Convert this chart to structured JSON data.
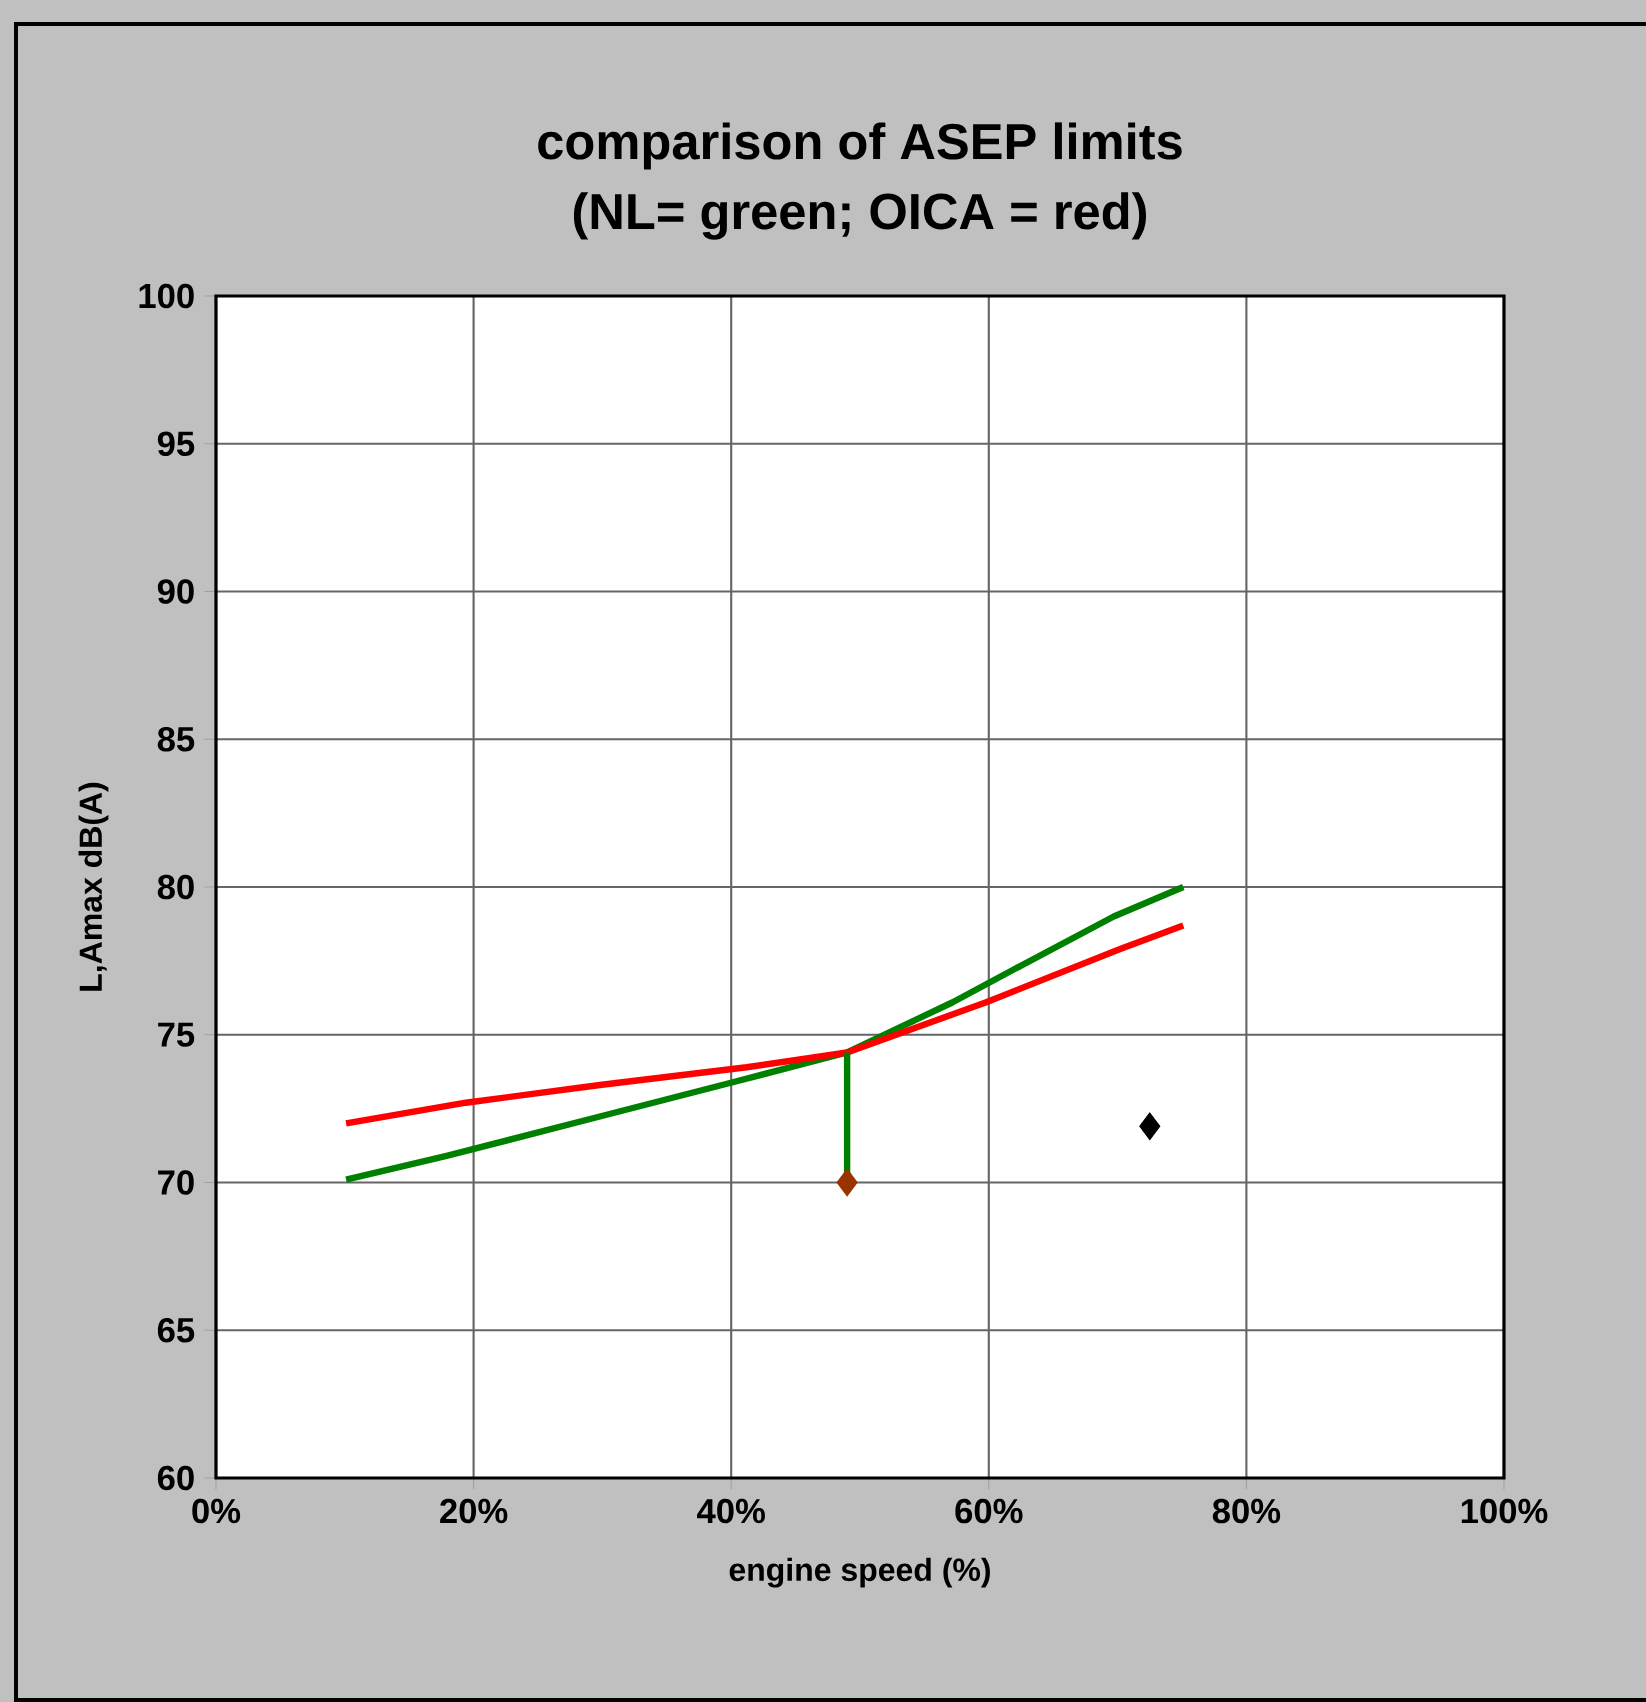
{
  "chart_data": {
    "type": "line",
    "title": "comparison of ASEP limits",
    "subtitle": "(NL= green; OICA = red)",
    "xlabel": "engine speed (%)",
    "ylabel": "L,Amax dB(A)",
    "xlim": [
      0,
      100
    ],
    "ylim": [
      60,
      100
    ],
    "xticks": [
      {
        "value": 0,
        "label": "0%"
      },
      {
        "value": 20,
        "label": "20%"
      },
      {
        "value": 40,
        "label": "40%"
      },
      {
        "value": 60,
        "label": "60%"
      },
      {
        "value": 80,
        "label": "80%"
      },
      {
        "value": 100,
        "label": "100%"
      }
    ],
    "yticks": [
      60,
      65,
      70,
      75,
      80,
      85,
      90,
      95,
      100
    ],
    "grid": true,
    "line_style": "solid",
    "series": [
      {
        "color": "#008000",
        "x": [
          10.1,
          17.9,
          29.5,
          40.2,
          49.0,
          57.2,
          61.9,
          69.7,
          75.1
        ],
        "values": [
          70.1,
          70.9,
          72.2,
          73.4,
          74.4,
          76.1,
          77.2,
          79.0,
          80.0
        ]
      },
      {
        "color": "#ff0000",
        "x": [
          10.1,
          19.4,
          29.8,
          41.2,
          49.0,
          59.8,
          70.2,
          75.1
        ],
        "values": [
          72.0,
          72.7,
          73.3,
          73.9,
          74.4,
          76.1,
          77.9,
          78.7
        ]
      },
      {
        "color": "#008000",
        "x": [
          49.0,
          49.0
        ],
        "values": [
          74.4,
          70.0
        ]
      },
      {
        "type": "scatter",
        "marker": "diamond",
        "color": "#993300",
        "x": [
          49.0
        ],
        "values": [
          70.0
        ]
      },
      {
        "type": "scatter",
        "marker": "diamond",
        "color": "#000000",
        "x": [
          72.5
        ],
        "values": [
          71.9
        ]
      }
    ]
  }
}
